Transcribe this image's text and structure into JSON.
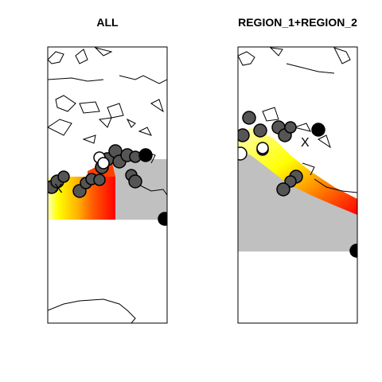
{
  "panels": [
    {
      "title": "ALL"
    },
    {
      "title": "REGION_1+REGION_2"
    }
  ],
  "colors": {
    "land_fill": "#c0c0c0",
    "marker_dark": "#555555",
    "marker_black": "#000000",
    "heat_red": "#ff0000",
    "heat_orange": "#ff8000",
    "heat_yellow": "#ffff00",
    "heat_light": "#ffffc0"
  },
  "marker_symbol": "X"
}
